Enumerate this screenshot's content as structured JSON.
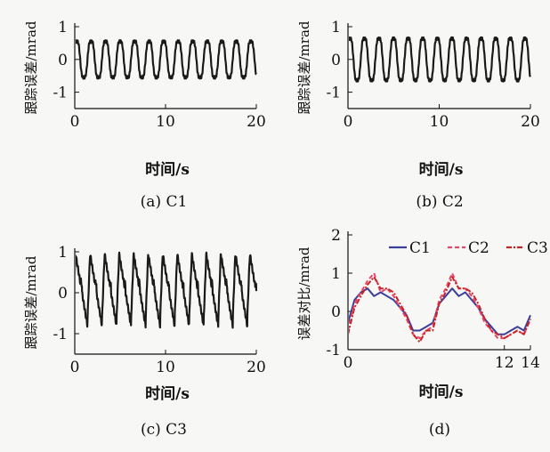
{
  "figure": {
    "panels": [
      {
        "id": "a",
        "caption": "(a) C1",
        "ylabel": "跟踪误差/mrad",
        "xlabel": "时间/s"
      },
      {
        "id": "b",
        "caption": "(b) C2",
        "ylabel": "跟踪误差/mrad",
        "xlabel": "时间/s"
      },
      {
        "id": "c",
        "caption": "(c) C3",
        "ylabel": "跟踪误差/mrad",
        "xlabel": "时间/s"
      },
      {
        "id": "d",
        "caption": "(d)",
        "ylabel": "误差对比/mrad",
        "xlabel": "时间/s"
      }
    ]
  },
  "chart_data": [
    {
      "type": "line",
      "title": "(a) C1",
      "xlabel": "时间/s",
      "ylabel": "跟踪误差/mrad",
      "xlim": [
        0,
        20
      ],
      "ylim": [
        -1.5,
        1
      ],
      "xticks": [
        0,
        10,
        20
      ],
      "yticks": [
        -1,
        0,
        1
      ],
      "series": [
        {
          "name": "C1",
          "color": "#1a1a1a",
          "style": "solid",
          "description": "oscillation, period about 1.6 s, amplitude about 0.6 mrad",
          "period": 1.6,
          "amplitude": 0.62
        }
      ]
    },
    {
      "type": "line",
      "title": "(b) C2",
      "xlabel": "时间/s",
      "ylabel": "跟踪误差/mrad",
      "xlim": [
        0,
        20
      ],
      "ylim": [
        -1.5,
        1
      ],
      "xticks": [
        0,
        10,
        20
      ],
      "yticks": [
        -1,
        0,
        1
      ],
      "series": [
        {
          "name": "C2",
          "color": "#1a1a1a",
          "style": "solid",
          "period": 1.6,
          "amplitude": 0.72
        }
      ]
    },
    {
      "type": "line",
      "title": "(c) C3",
      "xlabel": "时间/s",
      "ylabel": "跟踪误差/mrad",
      "xlim": [
        0,
        20
      ],
      "ylim": [
        -1.5,
        1
      ],
      "xticks": [
        0,
        10,
        20
      ],
      "yticks": [
        -1,
        0,
        1
      ],
      "series": [
        {
          "name": "C3",
          "color": "#1a1a1a",
          "style": "solid",
          "period": 1.6,
          "amplitude": 0.95
        }
      ]
    },
    {
      "type": "line",
      "title": "(d)",
      "xlabel": "时间/s",
      "ylabel": "误差对比/mrad",
      "xlim": [
        0,
        14
      ],
      "ylim": [
        -1,
        2
      ],
      "xticks": [
        0,
        12,
        14
      ],
      "xtick_labels": [
        "0",
        "12",
        "14"
      ],
      "yticks": [
        -1,
        0,
        1,
        2
      ],
      "legend": [
        "C1",
        "C2",
        "C3"
      ],
      "legend_position": "top-right",
      "series": [
        {
          "name": "C1",
          "color": "#3b3f9a",
          "style": "solid",
          "x": [
            0,
            0.5,
            1,
            1.5,
            2,
            2.5,
            3,
            3.5,
            4,
            4.5,
            5,
            5.5,
            6,
            6.5,
            7,
            7.5,
            8,
            8.5,
            9,
            9.5,
            10,
            10.5,
            11,
            11.5,
            12,
            12.5,
            13,
            13.5,
            14
          ],
          "y": [
            -0.3,
            0.3,
            0.5,
            0.6,
            0.4,
            0.5,
            0.4,
            0.3,
            0.1,
            -0.1,
            -0.5,
            -0.5,
            -0.4,
            -0.3,
            0.2,
            0.4,
            0.6,
            0.4,
            0.5,
            0.3,
            0.1,
            -0.2,
            -0.4,
            -0.6,
            -0.6,
            -0.5,
            -0.4,
            -0.5,
            -0.1
          ]
        },
        {
          "name": "C2",
          "color": "#e8456a",
          "style": "dashed",
          "x": [
            0,
            0.5,
            1,
            1.5,
            2,
            2.5,
            3,
            3.5,
            4,
            4.5,
            5,
            5.5,
            6,
            6.5,
            7,
            7.5,
            8,
            8.5,
            9,
            9.5,
            10,
            10.5,
            11,
            11.5,
            12,
            12.5,
            13,
            13.5,
            14
          ],
          "y": [
            -0.5,
            0.2,
            0.5,
            0.8,
            1.0,
            0.5,
            0.6,
            0.4,
            0.1,
            -0.2,
            -0.6,
            -0.7,
            -0.5,
            -0.4,
            0.3,
            0.6,
            1.0,
            0.6,
            0.6,
            0.4,
            0.1,
            -0.3,
            -0.5,
            -0.7,
            -0.7,
            -0.6,
            -0.5,
            -0.6,
            -0.2
          ]
        },
        {
          "name": "C3",
          "color": "#cc2222",
          "style": "dashdot",
          "x": [
            0,
            0.5,
            1,
            1.5,
            2,
            2.5,
            3,
            3.5,
            4,
            4.5,
            5,
            5.5,
            6,
            6.5,
            7,
            7.5,
            8,
            8.5,
            9,
            9.5,
            10,
            10.5,
            11,
            11.5,
            12,
            12.5,
            13,
            13.5,
            14
          ],
          "y": [
            -0.6,
            0.1,
            0.4,
            0.7,
            0.9,
            0.6,
            0.6,
            0.5,
            0.2,
            -0.1,
            -0.6,
            -0.8,
            -0.5,
            -0.5,
            0.2,
            0.5,
            0.9,
            0.6,
            0.6,
            0.5,
            0.2,
            -0.2,
            -0.5,
            -0.6,
            -0.7,
            -0.6,
            -0.5,
            -0.6,
            -0.2
          ]
        }
      ]
    }
  ]
}
